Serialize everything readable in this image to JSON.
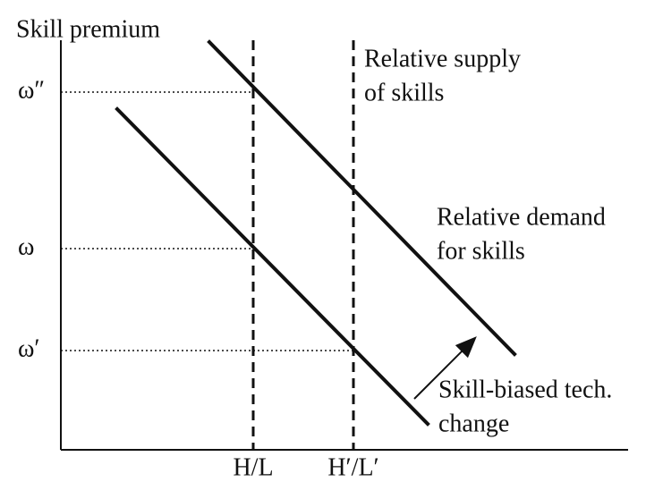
{
  "diagram": {
    "y_axis_label": "Skill premium",
    "y_levels": [
      "ω″",
      "ω",
      "ω′"
    ],
    "x_levels": [
      "H/L",
      "H′/L′"
    ],
    "supply_label": [
      "Relative supply",
      "of skills"
    ],
    "demand_label": [
      "Relative demand",
      "for skills"
    ],
    "shift_label": [
      "Skill-biased tech.",
      "change"
    ]
  }
}
